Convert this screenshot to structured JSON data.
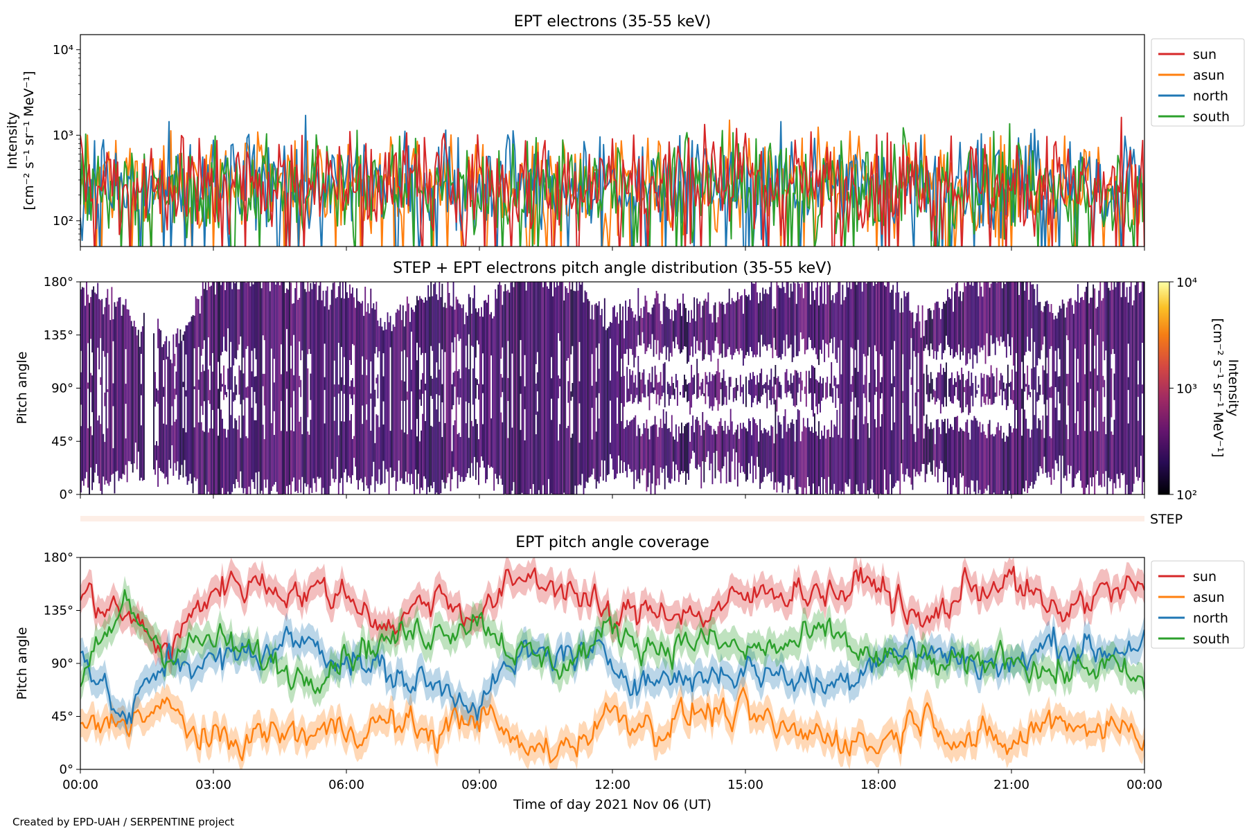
{
  "credit": "Created by EPD-UAH / SERPENTINE project",
  "colors": {
    "sun": "#d62728",
    "asun": "#ff7f0e",
    "north": "#1f77b4",
    "south": "#2ca02c"
  },
  "chart_data": [
    {
      "type": "line",
      "title": "EPT electrons (35-55 keV)",
      "ylabel_line1": "Intensity",
      "ylabel_line2": "[cm⁻² s⁻¹ sr⁻¹ MeV⁻¹]",
      "yscale": "log",
      "ylim": [
        50,
        15000
      ],
      "yticks": [
        {
          "v": 100,
          "label": "10²"
        },
        {
          "v": 1000,
          "label": "10³"
        },
        {
          "v": 10000,
          "label": "10⁴"
        }
      ],
      "x_range_hours": [
        0,
        24
      ],
      "legend_position": "outside-right-top",
      "series": [
        {
          "name": "sun",
          "color": "#d62728",
          "typical": 280,
          "max": 1000
        },
        {
          "name": "asun",
          "color": "#ff7f0e",
          "typical": 260,
          "max": 1000
        },
        {
          "name": "north",
          "color": "#1f77b4",
          "typical": 250,
          "max": 1050
        },
        {
          "name": "south",
          "color": "#2ca02c",
          "typical": 240,
          "max": 1150
        }
      ]
    },
    {
      "type": "heatmap",
      "title": "STEP + EPT electrons pitch angle distribution (35-55 keV)",
      "ylabel": "Pitch angle",
      "ylim": [
        0,
        180
      ],
      "yticks": [
        "0°",
        "45°",
        "90°",
        "135°",
        "180°"
      ],
      "x_range_hours": [
        0,
        24
      ],
      "colormap": "inferno",
      "colorbar": {
        "label_line1": "Intensity",
        "label_line2": "[cm⁻² s⁻¹ sr⁻¹ MeV⁻¹]",
        "scale": "log",
        "range": [
          100,
          10000
        ],
        "ticks": [
          "10²",
          "10³",
          "10⁴"
        ]
      },
      "typical_intensity": 250,
      "side_label": "STEP"
    },
    {
      "type": "line",
      "title": "EPT pitch angle coverage",
      "ylabel": "Pitch angle",
      "ylim": [
        0,
        180
      ],
      "yticks": [
        "0°",
        "45°",
        "90°",
        "135°",
        "180°"
      ],
      "x_range_hours": [
        0,
        24
      ],
      "xlabel": "Time of day 2021 Nov 06 (UT)",
      "xticks": [
        "00:00",
        "03:00",
        "06:00",
        "09:00",
        "12:00",
        "15:00",
        "18:00",
        "21:00",
        "00:00"
      ],
      "legend_position": "outside-right-top",
      "series": [
        {
          "name": "sun",
          "color": "#d62728",
          "hours": [
            0,
            1,
            2,
            3,
            4,
            5,
            6,
            7,
            8,
            9,
            10,
            11,
            12,
            13,
            14,
            15,
            16,
            17,
            18,
            19,
            20,
            21,
            22,
            23,
            24
          ],
          "values": [
            150,
            130,
            100,
            155,
            160,
            150,
            150,
            120,
            150,
            130,
            165,
            155,
            125,
            140,
            130,
            145,
            155,
            150,
            160,
            120,
            155,
            160,
            130,
            150,
            155
          ]
        },
        {
          "name": "asun",
          "color": "#ff7f0e",
          "hours": [
            0,
            1,
            2,
            3,
            4,
            5,
            6,
            7,
            8,
            9,
            10,
            11,
            12,
            13,
            14,
            15,
            16,
            17,
            18,
            19,
            20,
            21,
            22,
            23,
            24
          ],
          "values": [
            30,
            45,
            50,
            20,
            30,
            30,
            35,
            40,
            30,
            50,
            15,
            20,
            50,
            35,
            50,
            45,
            30,
            30,
            20,
            50,
            25,
            20,
            45,
            35,
            35
          ]
        },
        {
          "name": "north",
          "color": "#1f77b4",
          "hours": [
            0,
            1,
            2,
            3,
            4,
            5,
            6,
            7,
            8,
            9,
            10,
            11,
            12,
            13,
            14,
            15,
            16,
            17,
            18,
            19,
            20,
            21,
            22,
            23,
            24
          ],
          "values": [
            100,
            40,
            95,
            90,
            100,
            110,
            95,
            80,
            70,
            60,
            95,
            100,
            90,
            75,
            80,
            85,
            80,
            70,
            100,
            100,
            95,
            85,
            110,
            100,
            110
          ]
        },
        {
          "name": "south",
          "color": "#2ca02c",
          "hours": [
            0,
            1,
            2,
            3,
            4,
            5,
            6,
            7,
            8,
            9,
            10,
            11,
            12,
            13,
            14,
            15,
            16,
            17,
            18,
            19,
            20,
            21,
            22,
            23,
            24
          ],
          "values": [
            70,
            140,
            100,
            110,
            95,
            80,
            100,
            110,
            120,
            130,
            95,
            90,
            120,
            105,
            110,
            100,
            105,
            115,
            90,
            90,
            85,
            100,
            80,
            90,
            70
          ]
        }
      ]
    }
  ]
}
